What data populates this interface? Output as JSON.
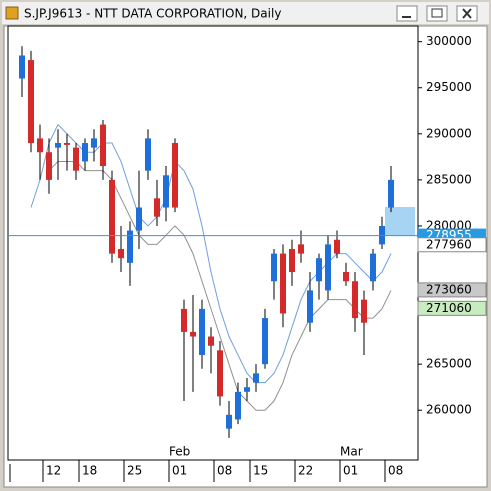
{
  "chart_data": {
    "type": "candlestick",
    "title": "S.JP.J9613 - NTT DATA CORPORATION, Daily",
    "categories": [
      null,
      null,
      null,
      "12",
      null,
      null,
      null,
      "18",
      null,
      null,
      null,
      null,
      "25",
      null,
      null,
      null,
      null,
      "01",
      null,
      null,
      null,
      null,
      "08",
      null,
      null,
      null,
      "15",
      null,
      null,
      null,
      null,
      "22",
      null,
      null,
      null,
      null,
      "01",
      null,
      null,
      null,
      null,
      "08"
    ],
    "months": [
      "Feb",
      "Mar"
    ],
    "open": [
      296000,
      298000,
      289500,
      288000,
      288500,
      289000,
      288500,
      287000,
      288500,
      291000,
      285000,
      277500,
      276000,
      279500,
      286000,
      283000,
      282000,
      289000,
      271000,
      268500,
      266000,
      268000,
      266500,
      258000,
      259000,
      262000,
      263000,
      265000,
      274000,
      277000,
      277500,
      278000,
      269500,
      274000,
      273000,
      278500,
      275000,
      274000,
      272000,
      274000,
      278000,
      282000
    ],
    "high": [
      299500,
      299000,
      291000,
      289500,
      290500,
      290000,
      289000,
      289500,
      290500,
      291500,
      286000,
      280000,
      280500,
      286000,
      290500,
      285000,
      286500,
      289500,
      272000,
      272500,
      272000,
      269000,
      267500,
      261000,
      263000,
      263500,
      265000,
      271000,
      277500,
      278000,
      278500,
      279500,
      275000,
      277000,
      279000,
      279500,
      276000,
      275000,
      273000,
      277500,
      281000,
      286500
    ],
    "low": [
      294000,
      288000,
      285000,
      283500,
      285000,
      286000,
      285000,
      286000,
      287000,
      285000,
      276000,
      275000,
      273500,
      277500,
      285000,
      280000,
      280500,
      281500,
      261000,
      262000,
      264500,
      264000,
      260500,
      257000,
      258500,
      261000,
      262000,
      264500,
      272000,
      269000,
      273500,
      276000,
      268500,
      272000,
      272000,
      276500,
      273500,
      268500,
      266000,
      273000,
      277500,
      281500
    ],
    "close": [
      298500,
      289000,
      288000,
      285000,
      289000,
      288800,
      286000,
      289000,
      289500,
      286500,
      277000,
      276500,
      279500,
      282000,
      289500,
      281000,
      285500,
      282000,
      268500,
      268000,
      271000,
      267000,
      261500,
      259500,
      262000,
      262500,
      264000,
      270000,
      277000,
      270500,
      275000,
      277000,
      273000,
      276500,
      278000,
      277000,
      274000,
      270000,
      269500,
      277000,
      280000,
      285000
    ],
    "up_color": "#1e6fd9",
    "down_color": "#d42a2a",
    "overlays": [
      {
        "color": "#6f9fe0",
        "values": [
          null,
          282000,
          285000,
          289000,
          291000,
          290000,
          289000,
          288000,
          288000,
          289000,
          289000,
          287000,
          284000,
          281000,
          280000,
          281000,
          283000,
          287000,
          286000,
          284000,
          280000,
          275000,
          271000,
          268000,
          266000,
          264000,
          263000,
          263000,
          264000,
          266000,
          269000,
          272000,
          274000,
          275000,
          276000,
          277000,
          277000,
          276000,
          275000,
          274000,
          275000,
          277000
        ]
      },
      {
        "color": "#909090",
        "values": [
          null,
          null,
          null,
          286000,
          287000,
          287000,
          287000,
          286000,
          286000,
          286000,
          285000,
          283000,
          281000,
          279000,
          278000,
          278000,
          279000,
          280000,
          279000,
          277000,
          274000,
          271000,
          268000,
          265000,
          262000,
          261000,
          260000,
          260000,
          261000,
          263000,
          266000,
          268000,
          270000,
          271000,
          272000,
          272000,
          272000,
          271000,
          270000,
          270000,
          271000,
          273000
        ]
      }
    ],
    "ylim": [
      254600,
      301700
    ],
    "yticks": [
      300000,
      295000,
      290000,
      285000,
      280000,
      265000,
      260000
    ],
    "current_price": {
      "value": 278955,
      "color": "#2a9ae0"
    },
    "price_labels": [
      {
        "value": 277960,
        "color": "#ffffff"
      },
      {
        "value": 273060,
        "color": "#c8c8c8"
      },
      {
        "value": 271060,
        "color": "#c8ecc0"
      }
    ]
  }
}
